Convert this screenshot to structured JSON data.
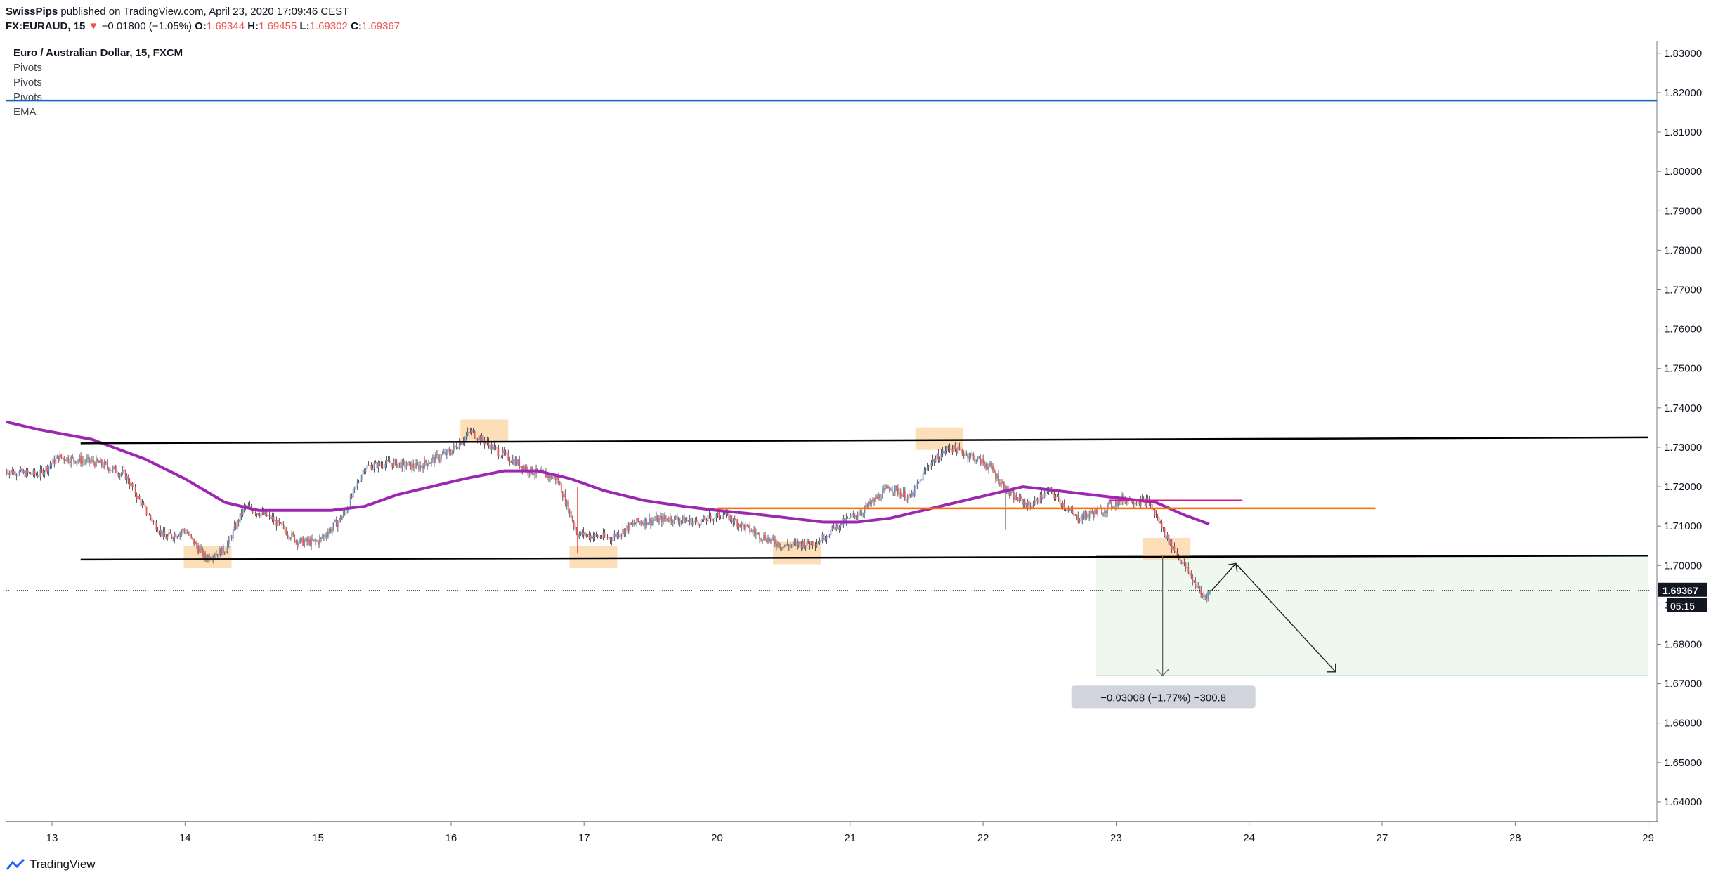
{
  "header": {
    "author": "SwissPips",
    "published_text": "published on TradingView.com, April 23, 2020 17:09:46 CEST",
    "symbol": "FX:EURAUD, 15",
    "change_arrow": "▼",
    "change": "−0.01800 (−1.05%)",
    "open_label": "O:",
    "open": "1.69344",
    "high_label": "H:",
    "high": "1.69455",
    "low_label": "L:",
    "low": "1.69302",
    "close_label": "C:",
    "close": "1.69367"
  },
  "legend": {
    "title": "Euro / Australian Dollar, 15, FXCM",
    "indicators": [
      "Pivots",
      "Pivots",
      "Pivots",
      "EMA"
    ]
  },
  "footer": {
    "brand": "TradingView"
  },
  "colors": {
    "up": "#6a8fc4",
    "down": "#ef5350",
    "ema": "#9c27b0",
    "resistance": "#000000",
    "support_level": "#ff6d00",
    "pivot_line": "#1565c0",
    "highlight": "#fbd7a8",
    "target_zone": "#e8f5e9",
    "magenta": "#d81b8a"
  },
  "chart_data": {
    "type": "candlestick",
    "title": "Euro / Australian Dollar, 15, FXCM",
    "ylim": [
      1.635,
      1.833
    ],
    "y_ticks": [
      "1.83000",
      "1.82000",
      "1.81000",
      "1.80000",
      "1.79000",
      "1.78000",
      "1.77000",
      "1.76000",
      "1.75000",
      "1.74000",
      "1.73000",
      "1.72000",
      "1.71000",
      "1.70000",
      "1.69000",
      "1.68000",
      "1.67000",
      "1.66000",
      "1.65000",
      "1.64000"
    ],
    "x_ticks": [
      {
        "label": "13",
        "day": 0
      },
      {
        "label": "14",
        "day": 1
      },
      {
        "label": "15",
        "day": 2
      },
      {
        "label": "16",
        "day": 3
      },
      {
        "label": "17",
        "day": 4
      },
      {
        "label": "20",
        "day": 5
      },
      {
        "label": "21",
        "day": 6
      },
      {
        "label": "22",
        "day": 7
      },
      {
        "label": "23",
        "day": 8
      },
      {
        "label": "24",
        "day": 9
      },
      {
        "label": "27",
        "day": 10
      },
      {
        "label": "28",
        "day": 11
      },
      {
        "label": "29",
        "day": 12
      }
    ],
    "price_path": [
      [
        -0.35,
        1.724
      ],
      [
        -0.1,
        1.723
      ],
      [
        0.05,
        1.7275
      ],
      [
        0.35,
        1.726
      ],
      [
        0.55,
        1.723
      ],
      [
        0.7,
        1.714
      ],
      [
        0.85,
        1.707
      ],
      [
        1.0,
        1.709
      ],
      [
        1.15,
        1.702
      ],
      [
        1.3,
        1.704
      ],
      [
        1.45,
        1.715
      ],
      [
        1.65,
        1.712
      ],
      [
        1.85,
        1.706
      ],
      [
        2.0,
        1.706
      ],
      [
        2.2,
        1.713
      ],
      [
        2.35,
        1.725
      ],
      [
        2.55,
        1.726
      ],
      [
        2.75,
        1.725
      ],
      [
        3.0,
        1.729
      ],
      [
        3.15,
        1.734
      ],
      [
        3.35,
        1.729
      ],
      [
        3.6,
        1.724
      ],
      [
        3.8,
        1.722
      ],
      [
        3.95,
        1.708
      ],
      [
        4.2,
        1.707
      ],
      [
        4.4,
        1.711
      ],
      [
        4.65,
        1.712
      ],
      [
        4.85,
        1.711
      ],
      [
        5.05,
        1.713
      ],
      [
        5.3,
        1.708
      ],
      [
        5.5,
        1.705
      ],
      [
        5.75,
        1.706
      ],
      [
        5.9,
        1.71
      ],
      [
        6.1,
        1.714
      ],
      [
        6.3,
        1.72
      ],
      [
        6.45,
        1.717
      ],
      [
        6.6,
        1.726
      ],
      [
        6.75,
        1.73
      ],
      [
        6.9,
        1.728
      ],
      [
        7.05,
        1.725
      ],
      [
        7.2,
        1.718
      ],
      [
        7.35,
        1.715
      ],
      [
        7.5,
        1.719
      ],
      [
        7.7,
        1.712
      ],
      [
        7.9,
        1.714
      ],
      [
        8.05,
        1.717
      ],
      [
        8.25,
        1.716
      ],
      [
        8.4,
        1.706
      ],
      [
        8.55,
        1.698
      ],
      [
        8.65,
        1.692
      ],
      [
        8.72,
        1.6937
      ]
    ],
    "ema": [
      [
        -0.35,
        1.7365
      ],
      [
        -0.1,
        1.7345
      ],
      [
        0.3,
        1.732
      ],
      [
        0.7,
        1.727
      ],
      [
        1.0,
        1.722
      ],
      [
        1.3,
        1.716
      ],
      [
        1.55,
        1.714
      ],
      [
        1.85,
        1.714
      ],
      [
        2.1,
        1.714
      ],
      [
        2.35,
        1.715
      ],
      [
        2.6,
        1.718
      ],
      [
        2.85,
        1.72
      ],
      [
        3.1,
        1.722
      ],
      [
        3.4,
        1.724
      ],
      [
        3.65,
        1.724
      ],
      [
        3.9,
        1.722
      ],
      [
        4.15,
        1.719
      ],
      [
        4.45,
        1.7165
      ],
      [
        4.75,
        1.715
      ],
      [
        5.0,
        1.714
      ],
      [
        5.3,
        1.713
      ],
      [
        5.55,
        1.712
      ],
      [
        5.8,
        1.711
      ],
      [
        6.05,
        1.711
      ],
      [
        6.3,
        1.712
      ],
      [
        6.55,
        1.714
      ],
      [
        6.8,
        1.716
      ],
      [
        7.05,
        1.718
      ],
      [
        7.3,
        1.72
      ],
      [
        7.55,
        1.719
      ],
      [
        7.8,
        1.718
      ],
      [
        8.05,
        1.717
      ],
      [
        8.3,
        1.716
      ],
      [
        8.5,
        1.713
      ],
      [
        8.7,
        1.7105
      ]
    ],
    "lines": {
      "pivot_top": 1.818,
      "resistance": [
        [
          -0.35,
          1.731
        ],
        [
          12.0,
          1.7325
        ]
      ],
      "support": [
        [
          -0.35,
          1.7015
        ],
        [
          12.0,
          1.7025
        ]
      ],
      "orange_level": [
        [
          5.0,
          1.7145
        ],
        [
          9.95,
          1.7145
        ]
      ],
      "magenta_level": [
        [
          7.95,
          1.7165
        ],
        [
          8.95,
          1.7165
        ]
      ],
      "current_price": 1.69367
    },
    "highlights": [
      {
        "day": 1.17,
        "price": 1.702
      },
      {
        "day": 3.25,
        "price": 1.734
      },
      {
        "day": 4.07,
        "price": 1.702
      },
      {
        "day": 5.6,
        "price": 1.703
      },
      {
        "day": 6.67,
        "price": 1.732
      },
      {
        "day": 8.38,
        "price": 1.704
      }
    ],
    "target_zone": {
      "from_day": 7.85,
      "to_day": 12.0,
      "top": 1.7025,
      "bottom": 1.672
    },
    "projection": [
      [
        8.72,
        1.6937
      ],
      [
        8.9,
        1.7005
      ],
      [
        9.65,
        1.673
      ]
    ],
    "measure": {
      "day": 8.35,
      "from": 1.7025,
      "to": 1.672,
      "label": "−0.03008 (−1.77%) −300.8"
    },
    "last_price_label": "1.69367",
    "countdown": "05:15",
    "axis_partial_tick": "1"
  }
}
